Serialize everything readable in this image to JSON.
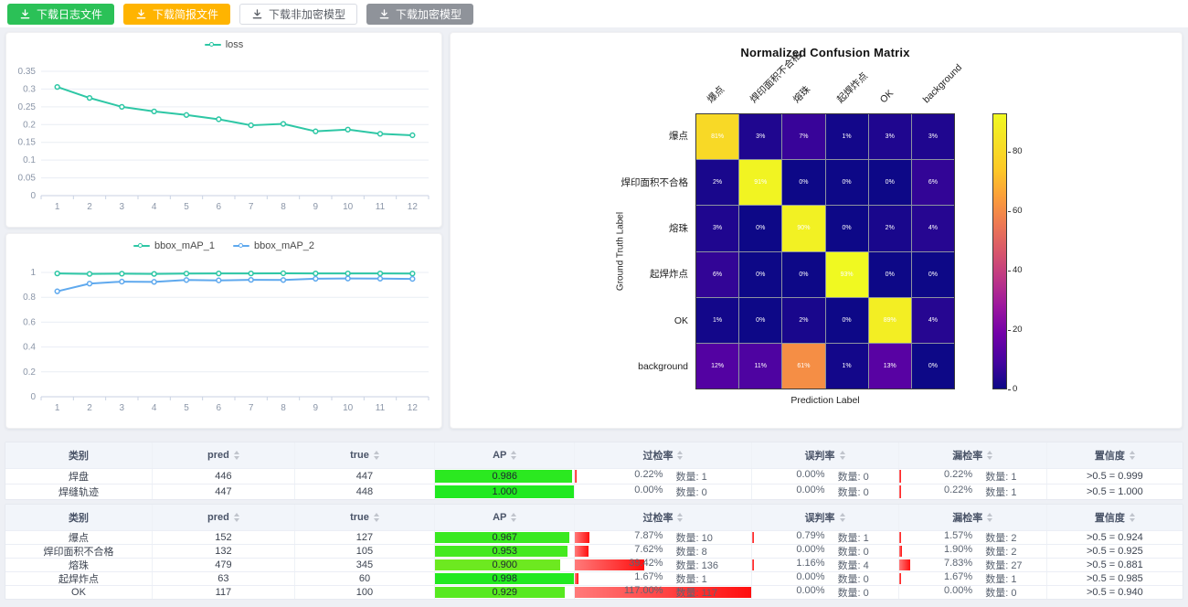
{
  "toolbar": {
    "buttons": [
      {
        "label": "下载日志文件",
        "style": "green"
      },
      {
        "label": "下载简报文件",
        "style": "orange"
      },
      {
        "label": "下载非加密模型",
        "style": "plain"
      },
      {
        "label": "下载加密模型",
        "style": "gray"
      }
    ]
  },
  "chart_data": [
    {
      "type": "line",
      "name": "loss-chart",
      "x": [
        1,
        2,
        3,
        4,
        5,
        6,
        7,
        8,
        9,
        10,
        11,
        12
      ],
      "series": [
        {
          "name": "loss",
          "color": "#2ec7a5",
          "values": [
            0.306,
            0.275,
            0.25,
            0.237,
            0.227,
            0.215,
            0.198,
            0.202,
            0.181,
            0.186,
            0.174,
            0.17
          ]
        }
      ],
      "ymax": 0.35,
      "yticks": [
        "0",
        "0.05",
        "0.1",
        "0.15",
        "0.2",
        "0.25",
        "0.3",
        "0.35"
      ],
      "legend_position": "top"
    },
    {
      "type": "line",
      "name": "map-chart",
      "x": [
        1,
        2,
        3,
        4,
        5,
        6,
        7,
        8,
        9,
        10,
        11,
        12
      ],
      "series": [
        {
          "name": "bbox_mAP_1",
          "color": "#2ec7a5",
          "values": [
            0.992,
            0.988,
            0.99,
            0.988,
            0.991,
            0.992,
            0.992,
            0.993,
            0.992,
            0.992,
            0.992,
            0.991
          ]
        },
        {
          "name": "bbox_mAP_2",
          "color": "#5fa9ee",
          "values": [
            0.848,
            0.91,
            0.926,
            0.924,
            0.939,
            0.936,
            0.94,
            0.939,
            0.949,
            0.951,
            0.95,
            0.948
          ]
        }
      ],
      "ymax": 1,
      "yticks": [
        "0",
        "0.2",
        "0.4",
        "0.6",
        "0.8",
        "1"
      ],
      "legend_position": "top"
    },
    {
      "type": "heatmap",
      "name": "confusion-matrix",
      "title": "Normalized Confusion Matrix",
      "xlabel": "Prediction Label",
      "ylabel": "Ground Truth Label",
      "labels": [
        "爆点",
        "焊印面积不合格",
        "熔珠",
        "起焊炸点",
        "OK",
        "background"
      ],
      "values_pct": [
        [
          81,
          3,
          7,
          1,
          3,
          3
        ],
        [
          2,
          91,
          0,
          0,
          0,
          6
        ],
        [
          3,
          0,
          90,
          0,
          2,
          4
        ],
        [
          6,
          0,
          0,
          93,
          0,
          0
        ],
        [
          1,
          0,
          2,
          0,
          89,
          4
        ],
        [
          12,
          11,
          61,
          1,
          13,
          0
        ]
      ],
      "vmax": 93,
      "colorbar_ticks": [
        0,
        20,
        40,
        60,
        80
      ],
      "colormap": "plasma"
    }
  ],
  "tables": [
    {
      "headers": [
        {
          "label": "类别",
          "sortable": false
        },
        {
          "label": "pred",
          "sortable": true
        },
        {
          "label": "true",
          "sortable": true
        },
        {
          "label": "AP",
          "sortable": true
        },
        {
          "label": "过检率",
          "sortable": true
        },
        {
          "label": "误判率",
          "sortable": true
        },
        {
          "label": "漏检率",
          "sortable": true
        },
        {
          "label": "置信度",
          "sortable": true
        }
      ],
      "rows": [
        {
          "category": "焊盘",
          "pred": "446",
          "true": "447",
          "ap": "0.986",
          "ap_val": 0.986,
          "over": {
            "pct": "0.22%",
            "count": "数量: 1",
            "val": 0.22
          },
          "mis": {
            "pct": "0.00%",
            "count": "数量: 0",
            "val": 0
          },
          "miss": {
            "pct": "0.22%",
            "count": "数量: 1",
            "val": 0.22
          },
          "conf": ">0.5 = 0.999"
        },
        {
          "category": "焊缝轨迹",
          "pred": "447",
          "true": "448",
          "ap": "1.000",
          "ap_val": 1.0,
          "over": {
            "pct": "0.00%",
            "count": "数量: 0",
            "val": 0
          },
          "mis": {
            "pct": "0.00%",
            "count": "数量: 0",
            "val": 0
          },
          "miss": {
            "pct": "0.22%",
            "count": "数量: 1",
            "val": 0.22
          },
          "conf": ">0.5 = 1.000"
        }
      ]
    },
    {
      "headers": [
        {
          "label": "类别",
          "sortable": false
        },
        {
          "label": "pred",
          "sortable": true
        },
        {
          "label": "true",
          "sortable": true
        },
        {
          "label": "AP",
          "sortable": true
        },
        {
          "label": "过检率",
          "sortable": true
        },
        {
          "label": "误判率",
          "sortable": true
        },
        {
          "label": "漏检率",
          "sortable": true
        },
        {
          "label": "置信度",
          "sortable": true
        }
      ],
      "rows": [
        {
          "category": "爆点",
          "pred": "152",
          "true": "127",
          "ap": "0.967",
          "ap_val": 0.967,
          "over": {
            "pct": "7.87%",
            "count": "数量: 10",
            "val": 7.87
          },
          "mis": {
            "pct": "0.79%",
            "count": "数量: 1",
            "val": 0.79
          },
          "miss": {
            "pct": "1.57%",
            "count": "数量: 2",
            "val": 1.57
          },
          "conf": ">0.5 = 0.924"
        },
        {
          "category": "焊印面积不合格",
          "pred": "132",
          "true": "105",
          "ap": "0.953",
          "ap_val": 0.953,
          "over": {
            "pct": "7.62%",
            "count": "数量: 8",
            "val": 7.62
          },
          "mis": {
            "pct": "0.00%",
            "count": "数量: 0",
            "val": 0
          },
          "miss": {
            "pct": "1.90%",
            "count": "数量: 2",
            "val": 1.9
          },
          "conf": ">0.5 = 0.925"
        },
        {
          "category": "熔珠",
          "pred": "479",
          "true": "345",
          "ap": "0.900",
          "ap_val": 0.9,
          "over": {
            "pct": "39.42%",
            "count": "数量: 136",
            "val": 39.42
          },
          "mis": {
            "pct": "1.16%",
            "count": "数量: 4",
            "val": 1.16
          },
          "miss": {
            "pct": "7.83%",
            "count": "数量: 27",
            "val": 7.83
          },
          "conf": ">0.5 = 0.881"
        },
        {
          "category": "起焊炸点",
          "pred": "63",
          "true": "60",
          "ap": "0.998",
          "ap_val": 0.998,
          "over": {
            "pct": "1.67%",
            "count": "数量: 1",
            "val": 1.67
          },
          "mis": {
            "pct": "0.00%",
            "count": "数量: 0",
            "val": 0
          },
          "miss": {
            "pct": "1.67%",
            "count": "数量: 1",
            "val": 1.67
          },
          "conf": ">0.5 = 0.985"
        },
        {
          "category": "OK",
          "pred": "117",
          "true": "100",
          "ap": "0.929",
          "ap_val": 0.929,
          "over": {
            "pct": "117.00%",
            "count": "数量: 117",
            "val": 117
          },
          "mis": {
            "pct": "0.00%",
            "count": "数量: 0",
            "val": 0
          },
          "miss": {
            "pct": "0.00%",
            "count": "数量: 0",
            "val": 0
          },
          "conf": ">0.5 = 0.940"
        }
      ]
    }
  ],
  "colors": {
    "accent_green": "#2bc157",
    "accent_orange": "#ffb400",
    "line_teal": "#2ec7a5",
    "line_blue": "#5fa9ee",
    "bar_red": "#ff1f1f"
  }
}
